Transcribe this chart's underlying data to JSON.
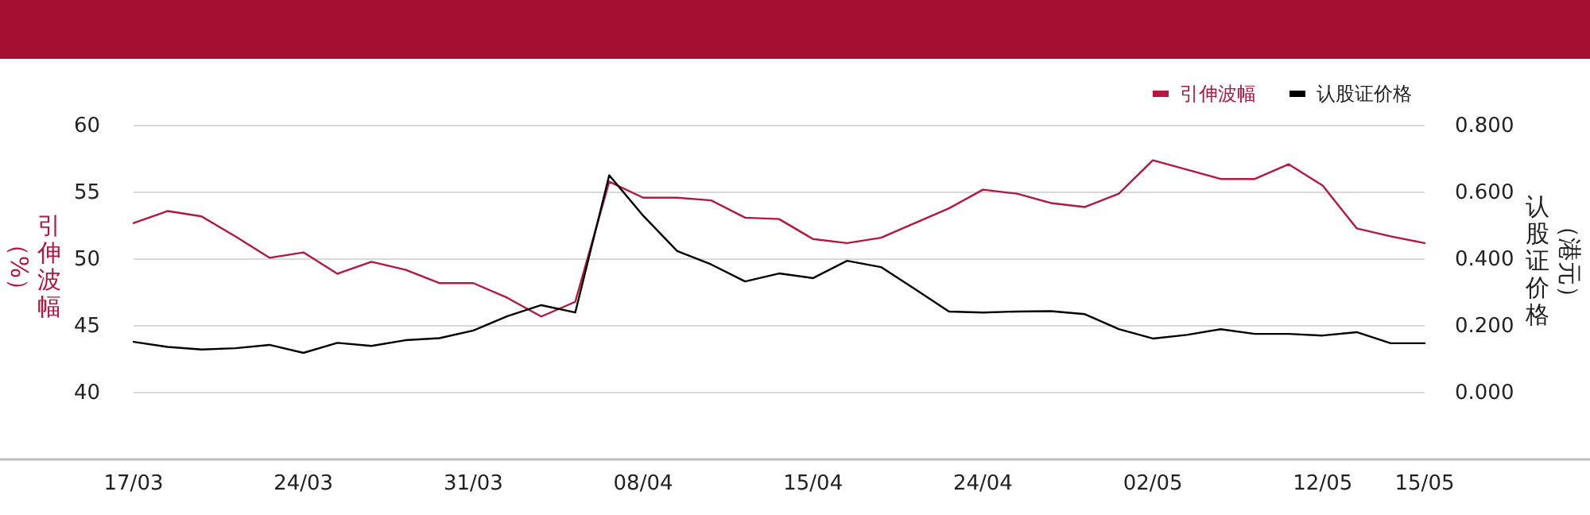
{
  "chart_data": {
    "type": "line",
    "ylabel": "引伸波幅（%）",
    "y2label": "认股证价格（港元）",
    "categories": [
      "17/03",
      null,
      null,
      null,
      null,
      "24/03",
      null,
      null,
      null,
      null,
      "31/03",
      null,
      null,
      null,
      null,
      "08/04",
      null,
      null,
      null,
      null,
      "15/04",
      null,
      null,
      null,
      null,
      "24/04",
      null,
      null,
      null,
      null,
      "02/05",
      null,
      null,
      null,
      null,
      "12/05",
      null,
      null,
      "15/05"
    ],
    "series": [
      {
        "name": "引伸波幅",
        "color": "#b5173f",
        "values": [
          52.7,
          53.6,
          53.2,
          51.7,
          50.1,
          50.5,
          48.9,
          49.8,
          49.2,
          48.2,
          48.2,
          47.1,
          45.7,
          46.8,
          55.8,
          54.6,
          54.6,
          54.4,
          53.1,
          53.0,
          51.5,
          51.2,
          51.6,
          52.7,
          53.8,
          55.2,
          54.9,
          54.2,
          53.9,
          54.9,
          57.4,
          56.7,
          56.0,
          56.0,
          57.1,
          55.5,
          52.3,
          51.7,
          51.2
        ]
      },
      {
        "name": "认股证价格",
        "color": "#000000",
        "axis": "y2",
        "values": [
          0.152,
          0.137,
          0.129,
          0.133,
          0.143,
          0.119,
          0.149,
          0.14,
          0.157,
          0.163,
          0.186,
          0.229,
          0.262,
          0.24,
          0.651,
          0.53,
          0.424,
          0.384,
          0.333,
          0.357,
          0.343,
          0.395,
          0.376,
          0.31,
          0.243,
          0.24,
          0.243,
          0.244,
          0.235,
          0.19,
          0.162,
          0.173,
          0.19,
          0.176,
          0.176,
          0.171,
          0.181,
          0.148,
          0.148
        ]
      }
    ],
    "ylim": [
      35,
      60
    ],
    "yticks": [
      40,
      45,
      50,
      55,
      60
    ],
    "y2lim": [
      -0.2,
      0.8
    ],
    "y2ticks": [
      {
        "value": 0,
        "label": "0.000"
      },
      {
        "value": 0.2,
        "label": "0.200"
      },
      {
        "value": 0.4,
        "label": "0.400"
      },
      {
        "value": 0.6,
        "label": "0.600"
      },
      {
        "value": 0.8,
        "label": "0.800"
      }
    ],
    "grid": "y",
    "legend": "top right",
    "marker": "none",
    "line_style": "solid"
  }
}
